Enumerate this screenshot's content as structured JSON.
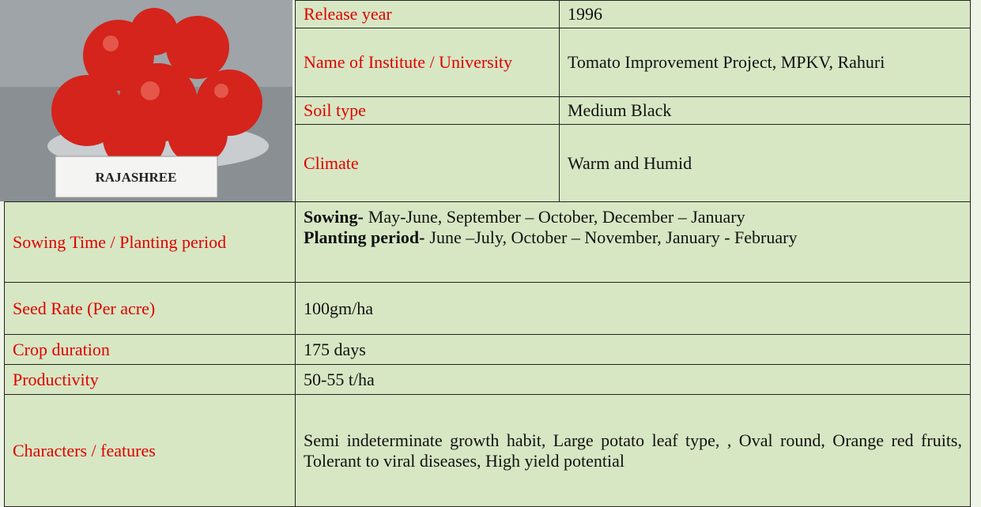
{
  "photo_label": "RAJASHREE",
  "top_rows": [
    {
      "label": "Release year",
      "value": "1996"
    },
    {
      "label": "Name of Institute / University",
      "value": "Tomato Improvement Project, MPKV, Rahuri"
    },
    {
      "label": "Soil type",
      "value": "Medium Black"
    },
    {
      "label": "Climate",
      "value": "Warm and Humid"
    }
  ],
  "sowing": {
    "label": "Sowing Time  / Planting period",
    "lines": [
      {
        "bold": "Sowing-",
        "text": "May-June, September – October, December – January"
      },
      {
        "bold": "Planting  period-",
        "text": "June –July, October – November, January - February"
      }
    ]
  },
  "bottom_rows": [
    {
      "label": "Seed Rate (Per acre)",
      "value": "100gm/ha"
    },
    {
      "label": "Crop duration",
      "value": "175 days"
    },
    {
      "label": "Productivity",
      "value": "50-55 t/ha"
    },
    {
      "label": "Characters / features",
      "value": "Semi indeterminate growth habit, Large potato leaf type, , Oval round, Orange red fruits, Tolerant to viral diseases, High yield potential"
    }
  ]
}
